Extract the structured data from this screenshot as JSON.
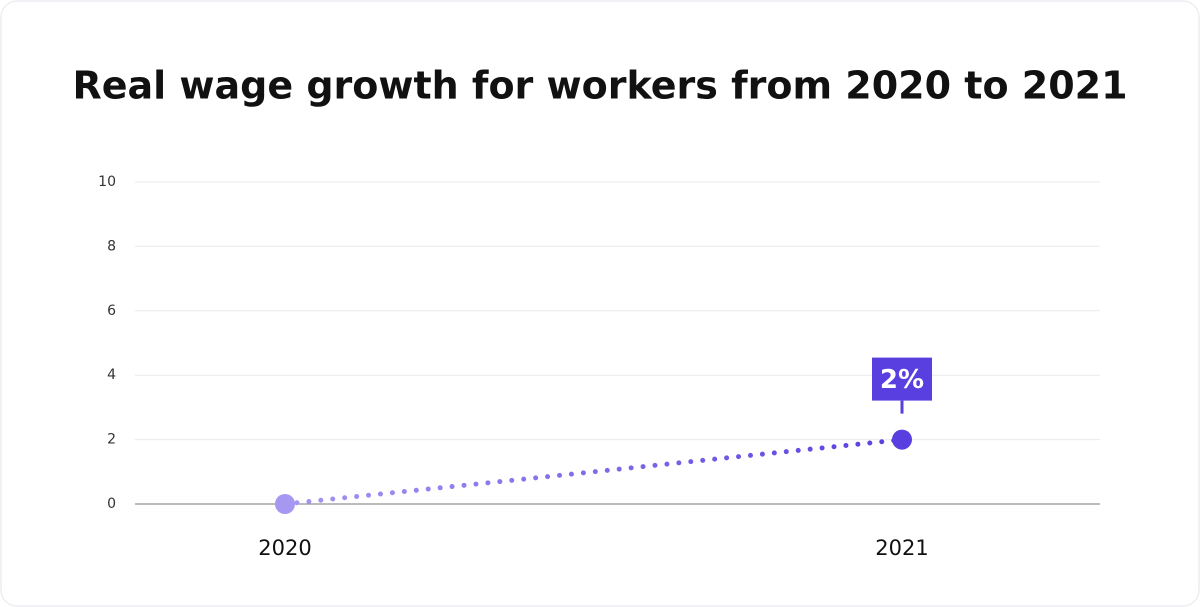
{
  "chart_data": {
    "type": "line",
    "title": "Real wage growth for workers from 2020 to 2021",
    "categories": [
      "2020",
      "2021"
    ],
    "values": [
      0,
      2
    ],
    "value_labels": [
      null,
      "2%"
    ],
    "colors": [
      "#a597f2",
      "#5a3fe0"
    ],
    "ylim": [
      0,
      10
    ],
    "yticks": [
      0,
      2,
      4,
      6,
      8,
      10
    ],
    "grid": true
  }
}
